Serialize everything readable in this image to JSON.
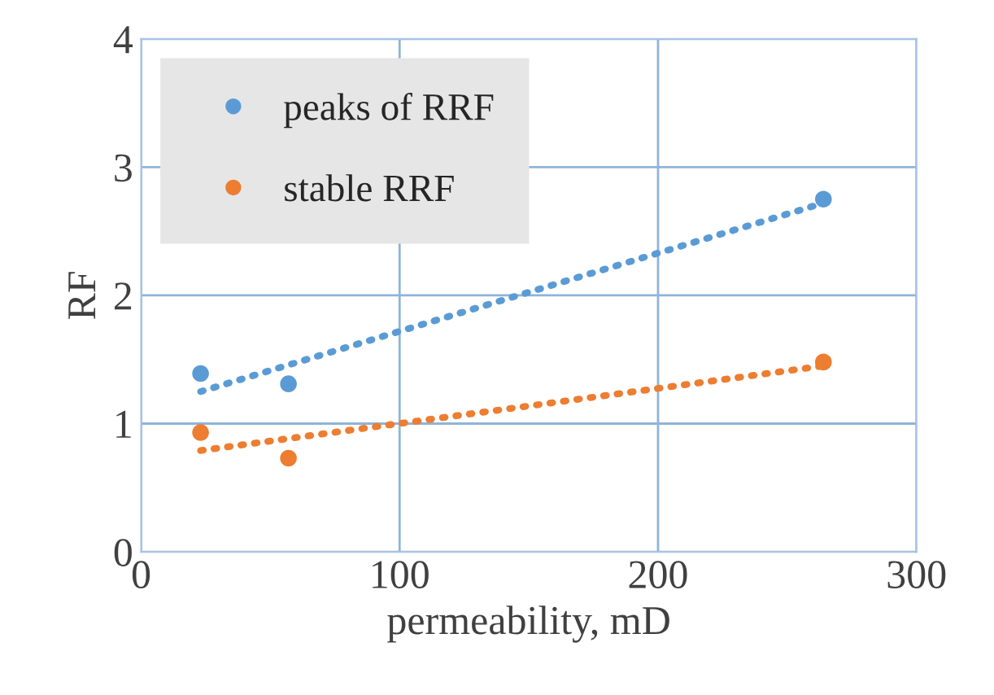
{
  "chart_data": {
    "type": "scatter",
    "xlabel": "permeability, mD",
    "ylabel": "RF",
    "series": [
      {
        "name": "peaks of RRF",
        "color": "#5b9bd5",
        "marker": "circle",
        "x": [
          23,
          57,
          264
        ],
        "values": [
          1.39,
          1.31,
          2.75
        ]
      },
      {
        "name": "stable RRF",
        "color": "#ed7d31",
        "marker": "circle",
        "x": [
          23,
          57,
          264
        ],
        "values": [
          0.93,
          0.73,
          1.48
        ]
      },
      {
        "type": "line",
        "color": "#5b9bd5",
        "x": [
          23,
          264
        ],
        "values": [
          1.25,
          2.72
        ],
        "line_style": "dotted"
      },
      {
        "type": "line",
        "color": "#ed7d31",
        "x": [
          23,
          264
        ],
        "values": [
          0.79,
          1.45
        ],
        "line_style": "dotted"
      }
    ],
    "xlim": [
      0,
      300
    ],
    "xticks": [
      0,
      100,
      200,
      300
    ],
    "ylim": [
      0,
      4
    ],
    "yticks": [
      0,
      1,
      2,
      3,
      4
    ],
    "grid": true,
    "legend": "top left"
  }
}
